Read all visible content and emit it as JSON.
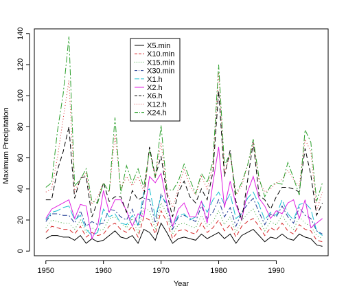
{
  "chart_data": {
    "type": "line",
    "title": "",
    "xlabel": "Year",
    "ylabel": "Maximum Precipitation",
    "xlim": [
      1948,
      1999
    ],
    "ylim": [
      -3,
      143
    ],
    "xticks": [
      1950,
      1960,
      1970,
      1980,
      1990
    ],
    "yticks": [
      0,
      20,
      40,
      60,
      80,
      100,
      120,
      140
    ],
    "grid": false,
    "legend_position": "top-center",
    "x": [
      1950,
      1951,
      1952,
      1953,
      1954,
      1955,
      1956,
      1957,
      1958,
      1959,
      1960,
      1961,
      1962,
      1963,
      1964,
      1965,
      1966,
      1967,
      1968,
      1969,
      1970,
      1971,
      1972,
      1973,
      1974,
      1975,
      1976,
      1977,
      1978,
      1979,
      1980,
      1981,
      1982,
      1983,
      1984,
      1985,
      1986,
      1987,
      1988,
      1989,
      1990,
      1991,
      1992,
      1993,
      1994,
      1995,
      1996,
      1997,
      1998
    ],
    "series": [
      {
        "name": "X5.min",
        "color": "#000000",
        "dash": "solid",
        "values": [
          8,
          10,
          10,
          9,
          9,
          7,
          10,
          5,
          8,
          6,
          7,
          10,
          13,
          9,
          8,
          10,
          5,
          14,
          12,
          7,
          18,
          12,
          5,
          8,
          9,
          8,
          7,
          11,
          8,
          10,
          12,
          8,
          11,
          5,
          10,
          12,
          14,
          10,
          6,
          9,
          8,
          11,
          8,
          7,
          11,
          9,
          8,
          4,
          3
        ]
      },
      {
        "name": "X10.min",
        "color": "#d62728",
        "dash": "6,4",
        "values": [
          12,
          16,
          15,
          14,
          14,
          11,
          16,
          9,
          12,
          10,
          11,
          16,
          18,
          14,
          12,
          16,
          9,
          22,
          20,
          11,
          26,
          19,
          8,
          13,
          14,
          12,
          11,
          18,
          12,
          15,
          20,
          13,
          17,
          9,
          16,
          19,
          21,
          16,
          10,
          15,
          13,
          18,
          13,
          11,
          17,
          14,
          13,
          7,
          6
        ]
      },
      {
        "name": "X15.min",
        "color": "#2ca02c",
        "dash": "1,3",
        "values": [
          15,
          20,
          19,
          18,
          18,
          14,
          20,
          12,
          15,
          13,
          14,
          21,
          22,
          18,
          15,
          21,
          12,
          28,
          26,
          14,
          31,
          24,
          11,
          17,
          18,
          16,
          15,
          23,
          16,
          19,
          26,
          17,
          22,
          12,
          20,
          24,
          27,
          20,
          13,
          19,
          17,
          23,
          17,
          14,
          22,
          18,
          16,
          10,
          8
        ]
      },
      {
        "name": "X30.min",
        "color": "#1f3a93",
        "dash": "7,3,2,3",
        "values": [
          19,
          24,
          24,
          23,
          23,
          18,
          26,
          16,
          19,
          17,
          18,
          27,
          26,
          22,
          20,
          27,
          16,
          34,
          33,
          18,
          37,
          29,
          14,
          22,
          23,
          21,
          19,
          29,
          21,
          25,
          33,
          22,
          28,
          16,
          25,
          30,
          34,
          25,
          17,
          24,
          22,
          29,
          22,
          18,
          28,
          23,
          21,
          13,
          11
        ]
      },
      {
        "name": "X1.h",
        "color": "#17becf",
        "dash": "12,4",
        "values": [
          20,
          25,
          26,
          28,
          29,
          20,
          23,
          14,
          10,
          12,
          27,
          22,
          24,
          18,
          17,
          23,
          17,
          38,
          40,
          22,
          35,
          31,
          16,
          23,
          24,
          20,
          22,
          32,
          25,
          33,
          38,
          30,
          37,
          21,
          24,
          34,
          38,
          30,
          20,
          25,
          23,
          33,
          24,
          20,
          30,
          31,
          27,
          13,
          10
        ]
      },
      {
        "name": "X2.h",
        "color": "#e01ee0",
        "dash": "solid",
        "values": [
          21,
          27,
          29,
          31,
          33,
          21,
          30,
          29,
          8,
          16,
          39,
          25,
          33,
          33,
          26,
          16,
          24,
          22,
          48,
          44,
          50,
          31,
          16,
          27,
          31,
          22,
          22,
          32,
          18,
          44,
          67,
          28,
          45,
          30,
          20,
          38,
          48,
          34,
          29,
          21,
          26,
          24,
          31,
          33,
          21,
          33,
          15,
          18,
          21
        ]
      },
      {
        "name": "X6.h",
        "color": "#000000",
        "dash": "7,4",
        "values": [
          33,
          33,
          52,
          64,
          80,
          34,
          47,
          48,
          22,
          32,
          44,
          32,
          35,
          35,
          25,
          39,
          33,
          35,
          67,
          48,
          61,
          37,
          22,
          38,
          45,
          35,
          31,
          40,
          33,
          51,
          103,
          48,
          65,
          32,
          20,
          45,
          70,
          36,
          33,
          27,
          35,
          41,
          41,
          40,
          38,
          66,
          49,
          23,
          31
        ]
      },
      {
        "name": "X12.h",
        "color": "#d62728",
        "dash": "1,3",
        "values": [
          38,
          40,
          60,
          85,
          110,
          38,
          46,
          50,
          30,
          35,
          44,
          38,
          75,
          40,
          48,
          42,
          48,
          38,
          65,
          48,
          70,
          38,
          28,
          40,
          53,
          42,
          36,
          48,
          40,
          55,
          115,
          50,
          62,
          36,
          42,
          55,
          70,
          45,
          38,
          40,
          44,
          46,
          52,
          46,
          42,
          72,
          64,
          26,
          38
        ]
      },
      {
        "name": "X24.h",
        "color": "#2ca02c",
        "dash": "9,3,2,3",
        "values": [
          41,
          44,
          77,
          101,
          138,
          42,
          46,
          53,
          32,
          31,
          44,
          38,
          86,
          37,
          55,
          44,
          53,
          41,
          65,
          47,
          81,
          40,
          39,
          45,
          56,
          46,
          37,
          50,
          44,
          58,
          120,
          55,
          63,
          37,
          44,
          55,
          72,
          47,
          35,
          42,
          44,
          43,
          57,
          47,
          36,
          78,
          70,
          32,
          44
        ]
      }
    ]
  }
}
